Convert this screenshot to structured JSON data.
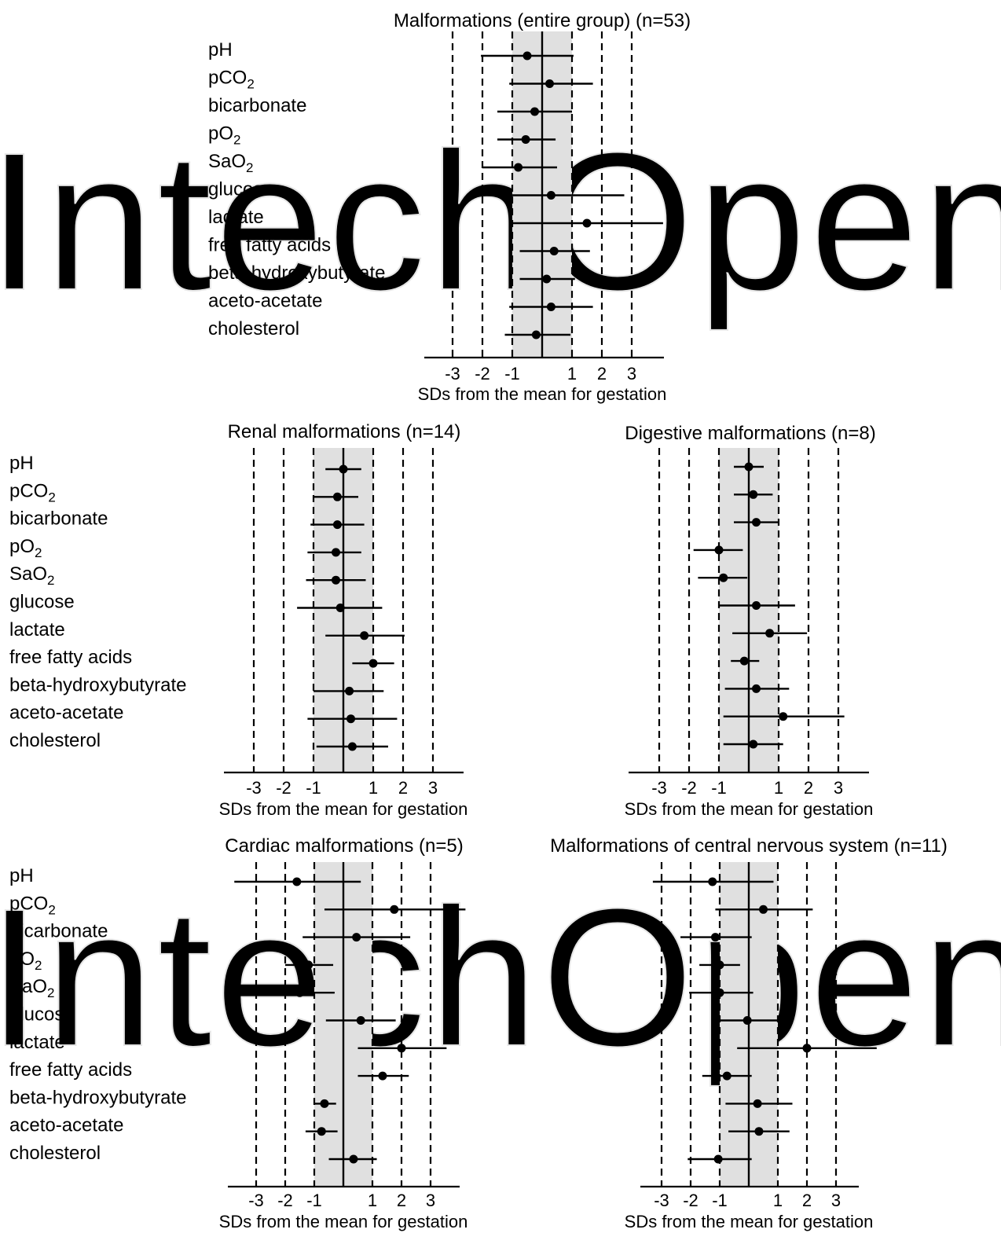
{
  "watermark": "IntechOpen",
  "chart_data": [
    {
      "type": "forest",
      "title": "Malformations (entire group) (n=53)",
      "xlabel": "SDs from the mean for gestation",
      "xticks": [
        -3,
        -2,
        -1,
        1,
        2,
        3
      ],
      "xlim": [
        -3.9,
        4.1
      ],
      "shaded_band": [
        -1,
        1
      ],
      "reference_lines": [
        -3,
        -2,
        -1,
        0,
        1,
        2,
        3
      ],
      "categories": [
        "pH",
        "pCO2",
        "bicarbonate",
        "pO2",
        "SaO2",
        "glucose",
        "lactate",
        "free fatty acids",
        "beta-hydroxybutyrate",
        "aceto-acetate",
        "cholesterol"
      ],
      "mean": [
        -0.5,
        0.25,
        -0.25,
        -0.55,
        -0.8,
        0.3,
        1.5,
        0.4,
        0.15,
        0.3,
        -0.2
      ],
      "lower": [
        -2.05,
        -1.1,
        -1.5,
        -1.5,
        -2.0,
        -2.15,
        -1.0,
        -0.75,
        -0.75,
        -1.1,
        -1.25
      ],
      "upper": [
        1.05,
        1.7,
        1.0,
        0.45,
        0.5,
        2.75,
        4.05,
        1.6,
        1.1,
        1.7,
        0.95
      ]
    },
    {
      "type": "forest",
      "title": "Renal malformations (n=14)",
      "xlabel": "SDs from the mean for gestation",
      "xticks": [
        -3,
        -2,
        -1,
        1,
        2,
        3
      ],
      "xlim": [
        -3.9,
        4.1
      ],
      "shaded_band": [
        -1,
        1
      ],
      "reference_lines": [
        -3,
        -2,
        -1,
        0,
        1,
        2,
        3
      ],
      "categories": [
        "pH",
        "pCO2",
        "bicarbonate",
        "pO2",
        "SaO2",
        "glucose",
        "lactate",
        "free fatty acids",
        "beta-hydroxybutyrate",
        "aceto-acetate",
        "cholesterol"
      ],
      "mean": [
        0.0,
        -0.2,
        -0.2,
        -0.25,
        -0.25,
        -0.1,
        0.7,
        1.0,
        0.2,
        0.25,
        0.3
      ],
      "lower": [
        -0.6,
        -1.0,
        -1.1,
        -1.2,
        -1.25,
        -1.55,
        -0.6,
        0.3,
        -1.0,
        -1.2,
        -0.9
      ],
      "upper": [
        0.6,
        0.5,
        0.7,
        0.6,
        0.75,
        1.3,
        2.05,
        1.7,
        1.35,
        1.8,
        1.5
      ]
    },
    {
      "type": "forest",
      "title": "Digestive malformations (n=8)",
      "xlabel": "SDs from the mean for gestation",
      "xticks": [
        -3,
        -2,
        -1,
        1,
        2,
        3
      ],
      "xlim": [
        -3.9,
        4.1
      ],
      "shaded_band": [
        -1,
        1
      ],
      "reference_lines": [
        -3,
        -2,
        -1,
        0,
        1,
        2,
        3
      ],
      "categories": [
        "pH",
        "pCO2",
        "bicarbonate",
        "pO2",
        "SaO2",
        "glucose",
        "lactate",
        "free fatty acids",
        "beta-hydroxybutyrate",
        "aceto-acetate",
        "cholesterol"
      ],
      "mean": [
        0.0,
        0.15,
        0.25,
        -1.0,
        -0.85,
        0.25,
        0.7,
        -0.15,
        0.25,
        1.15,
        0.15
      ],
      "lower": [
        -0.5,
        -0.5,
        -0.5,
        -1.85,
        -1.7,
        -1.0,
        -0.55,
        -0.6,
        -0.8,
        -0.85,
        -0.85
      ],
      "upper": [
        0.5,
        0.8,
        1.0,
        -0.2,
        -0.05,
        1.55,
        1.95,
        0.35,
        1.35,
        3.2,
        1.15
      ]
    },
    {
      "type": "forest",
      "title": "Cardiac malformations (n=5)",
      "xlabel": "SDs from the mean for gestation",
      "xticks": [
        -3,
        -2,
        -1,
        1,
        2,
        3
      ],
      "xlim": [
        -3.9,
        4.1
      ],
      "shaded_band": [
        -1,
        1
      ],
      "reference_lines": [
        -3,
        -2,
        -1,
        0,
        1,
        2,
        3
      ],
      "categories": [
        "pH",
        "pCO2",
        "bicarbonate",
        "pO2",
        "SaO2",
        "glucose",
        "lactate",
        "free fatty acids",
        "beta-hydroxybutyrate",
        "aceto-acetate",
        "cholesterol"
      ],
      "mean": [
        -1.6,
        1.75,
        0.45,
        -1.2,
        -1.5,
        0.6,
        2.0,
        1.35,
        -0.65,
        -0.75,
        0.35
      ],
      "lower": [
        -3.75,
        -0.65,
        -1.4,
        -2.0,
        -2.7,
        -0.6,
        0.5,
        0.5,
        -1.0,
        -1.3,
        -0.5
      ],
      "upper": [
        0.6,
        4.2,
        2.3,
        -0.35,
        -0.3,
        1.8,
        3.55,
        2.25,
        -0.25,
        -0.2,
        1.15
      ]
    },
    {
      "type": "forest",
      "title": "Malformations of central nervous system (n=11)",
      "xlabel": "SDs from the mean for gestation",
      "xticks": [
        -3,
        -2,
        -1,
        1,
        2,
        3
      ],
      "xlim": [
        -3.9,
        4.1
      ],
      "shaded_band": [
        -1,
        1
      ],
      "reference_lines": [
        -3,
        -2,
        -1,
        0,
        1,
        2,
        3
      ],
      "categories": [
        "pH",
        "pCO2",
        "bicarbonate",
        "pO2",
        "SaO2",
        "glucose",
        "lactate",
        "free fatty acids",
        "beta-hydroxybutyrate",
        "aceto-acetate",
        "cholesterol"
      ],
      "mean": [
        -1.25,
        0.5,
        -1.15,
        -1.0,
        -1.0,
        -0.05,
        2.0,
        -0.75,
        0.3,
        0.35,
        -1.05
      ],
      "lower": [
        -3.3,
        -1.15,
        -2.35,
        -1.7,
        -2.05,
        -1.1,
        -0.4,
        -1.6,
        -0.8,
        -0.7,
        -2.1
      ],
      "upper": [
        0.85,
        2.2,
        0.1,
        -0.3,
        0.15,
        1.05,
        4.4,
        0.1,
        1.5,
        1.4,
        0.1
      ]
    }
  ]
}
